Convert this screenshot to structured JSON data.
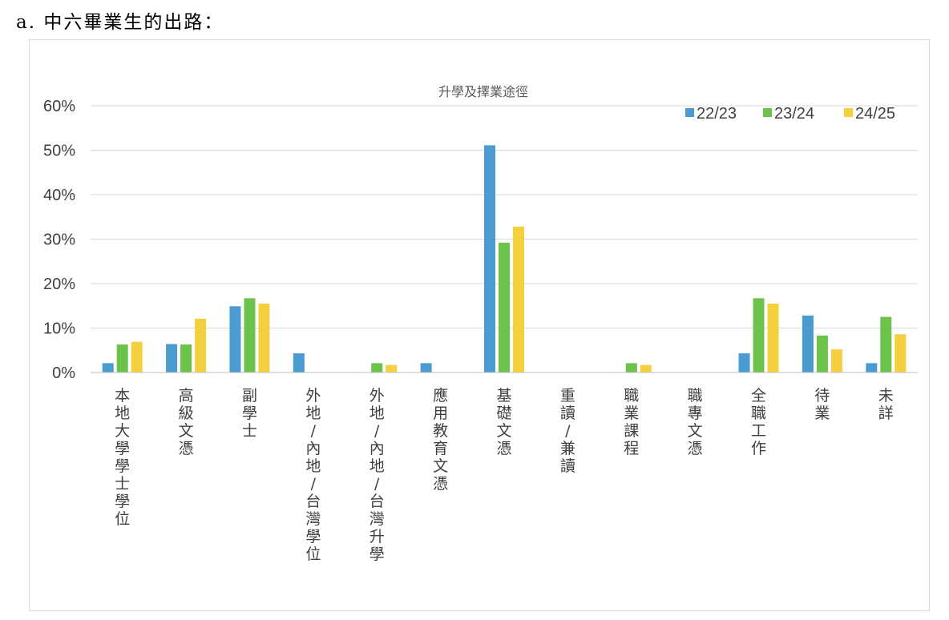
{
  "heading": {
    "prefix": "a.",
    "text": "中六畢業生的出路："
  },
  "chart_data": {
    "type": "bar",
    "title": "升學及擇業途徑",
    "categories": [
      "本地大學學士學位",
      "高級文憑",
      "副學士",
      "外地/內地/台灣學位",
      "外地/內地/台灣升學",
      "應用教育文憑",
      "基礎文憑",
      "重讀/兼讀",
      "職業課程",
      "職專文憑",
      "全職工作",
      "待業",
      "未詳"
    ],
    "series": [
      {
        "name": "22/23",
        "color": "#4a9bcf",
        "values": [
          2.1,
          6.4,
          14.9,
          4.3,
          0,
          2.1,
          51.1,
          0,
          0,
          0,
          4.3,
          12.8,
          2.1
        ]
      },
      {
        "name": "23/24",
        "color": "#6cc24a",
        "values": [
          6.3,
          6.3,
          16.7,
          0,
          2.1,
          0,
          29.2,
          0,
          2.1,
          0,
          16.7,
          8.3,
          12.5
        ]
      },
      {
        "name": "24/25",
        "color": "#f4d03f",
        "values": [
          6.9,
          12.1,
          15.5,
          0,
          1.7,
          0,
          32.8,
          0,
          1.7,
          0,
          15.5,
          5.2,
          8.6
        ]
      }
    ],
    "yticks": [
      "0%",
      "10%",
      "20%",
      "30%",
      "40%",
      "50%",
      "60%"
    ],
    "ylim": [
      0,
      60
    ],
    "grid": true,
    "legend_position": "top-right"
  }
}
